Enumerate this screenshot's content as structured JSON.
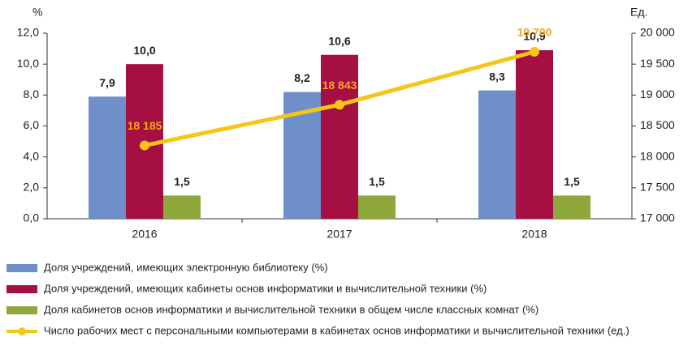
{
  "chart_data": {
    "type": "bar",
    "y_label": "%",
    "y2_label": "Ед.",
    "categories": [
      "2016",
      "2017",
      "2018"
    ],
    "series": [
      {
        "name": "Доля учреждений, имеющих электронную библиотеку (%)",
        "color": "#6f8fcb",
        "values": [
          7.9,
          8.2,
          8.3
        ],
        "value_labels": [
          "7,9",
          "8,2",
          "8,3"
        ]
      },
      {
        "name": "Доля учреждений, имеющих кабинеты основ информатики и вычислительной техники (%)",
        "color": "#a50f41",
        "values": [
          10.0,
          10.6,
          10.9
        ],
        "value_labels": [
          "10,0",
          "10,6",
          "10,9"
        ]
      },
      {
        "name": "Доля кабинетов основ информатики и вычислительной техники в общем числе классных комнат (%)",
        "color": "#8fa83c",
        "values": [
          1.5,
          1.5,
          1.5
        ],
        "value_labels": [
          "1,5",
          "1,5",
          "1,5"
        ]
      },
      {
        "name": "Число рабочих мест с персональными компьютерами в кабинетах основ информатики и вычислительной техники (ед.)",
        "color": "#f5c518",
        "type": "line",
        "axis": "y2",
        "values": [
          18185,
          18843,
          19700
        ],
        "value_labels": [
          "18 185",
          "18 843",
          "19 700"
        ]
      }
    ],
    "ylim": [
      0,
      12
    ],
    "yticks": [
      {
        "value": 0,
        "label": "0,0"
      },
      {
        "value": 2,
        "label": "2,0"
      },
      {
        "value": 4,
        "label": "4,0"
      },
      {
        "value": 6,
        "label": "6,0"
      },
      {
        "value": 8,
        "label": "8,0"
      },
      {
        "value": 10,
        "label": "10,0"
      },
      {
        "value": 12,
        "label": "12,0"
      }
    ],
    "y2lim": [
      17000,
      20000
    ],
    "y2ticks": [
      {
        "value": 17000,
        "label": "17 000"
      },
      {
        "value": 17500,
        "label": "17 500"
      },
      {
        "value": 18000,
        "label": "18 000"
      },
      {
        "value": 18500,
        "label": "18 500"
      },
      {
        "value": 19000,
        "label": "19 000"
      },
      {
        "value": 19500,
        "label": "19 500"
      },
      {
        "value": 20000,
        "label": "20 000"
      }
    ]
  }
}
